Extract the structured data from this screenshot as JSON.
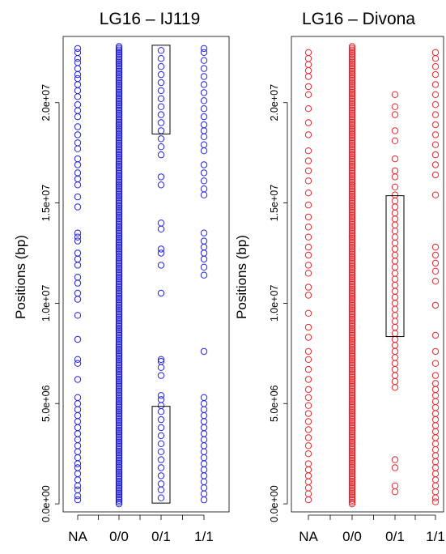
{
  "colors": {
    "panel_1": "#1f1fe6",
    "panel_2": "#e8262a"
  },
  "chart_data": [
    {
      "type": "scatter",
      "title": "LG16 – IJ119",
      "ylabel": "Positions (bp)",
      "categories": [
        "NA",
        "0/0",
        "0/1",
        "1/1"
      ],
      "y_ticks": [
        0,
        5000000,
        10000000,
        15000000,
        20000000
      ],
      "y_tick_labels": [
        "0.0e+00",
        "5.0e+06",
        "1.0e+07",
        "1.5e+07",
        "2.0e+07"
      ],
      "ylim": [
        -400000,
        23300000
      ],
      "color": "#1f1fe6",
      "marker": "open-circle",
      "series": [
        {
          "category": "NA",
          "y": [
            200000,
            400000,
            700000,
            900000,
            1200000,
            1500000,
            1800000,
            2000000,
            2300000,
            2600000,
            2900000,
            3200000,
            3500000,
            3800000,
            4100000,
            4400000,
            4700000,
            5000000,
            5300000,
            6200000,
            7000000,
            7200000,
            8200000,
            9400000,
            10200000,
            10500000,
            11000000,
            11300000,
            11900000,
            12200000,
            12500000,
            13100000,
            13300000,
            13500000,
            14800000,
            15300000,
            15900000,
            16200000,
            16500000,
            16900000,
            17200000,
            17700000,
            18000000,
            18400000,
            18800000,
            19300000,
            19600000,
            19900000,
            20300000,
            20600000,
            20900000,
            21200000,
            21400000,
            21700000,
            22000000,
            22200000,
            22500000,
            22700000
          ]
        },
        {
          "category": "0/0",
          "dense_range": [
            0,
            22800000
          ]
        },
        {
          "category": "0/1",
          "y": [
            300000,
            700000,
            1000000,
            1400000,
            1800000,
            2200000,
            2600000,
            3000000,
            3400000,
            3800000,
            4200000,
            4600000,
            4900000,
            5200000,
            5400000,
            6400000,
            6800000,
            7100000,
            7200000,
            10500000,
            11900000,
            12500000,
            12700000,
            13700000,
            14000000,
            15900000,
            16300000,
            17400000,
            17800000,
            18200000,
            18600000,
            19000000,
            19400000,
            19800000,
            20200000,
            20600000,
            21000000,
            21400000,
            21800000,
            22200000,
            22600000
          ]
        },
        {
          "category": "1/1",
          "y": [
            200000,
            500000,
            800000,
            1100000,
            1400000,
            1700000,
            2000000,
            2300000,
            2600000,
            2900000,
            3200000,
            3500000,
            3800000,
            4100000,
            4400000,
            4700000,
            5000000,
            5300000,
            7600000,
            11400000,
            11800000,
            12200000,
            12500000,
            12800000,
            13100000,
            13500000,
            15400000,
            15700000,
            16100000,
            16500000,
            16900000,
            17600000,
            17900000,
            18300000,
            18600000,
            18900000,
            19300000,
            19700000,
            20100000,
            20500000,
            20900000,
            21300000,
            21700000,
            22100000,
            22500000,
            22700000
          ]
        }
      ],
      "highlight_boxes": [
        {
          "category": "0/1",
          "y_range": [
            200000,
            4700000
          ]
        },
        {
          "category": "0/1",
          "y_range": [
            18600000,
            22700000
          ]
        }
      ]
    },
    {
      "type": "scatter",
      "title": "LG16 – Divona",
      "ylabel": "Positions (bp)",
      "categories": [
        "NA",
        "0/0",
        "0/1",
        "1/1"
      ],
      "y_ticks": [
        0,
        5000000,
        10000000,
        15000000,
        20000000
      ],
      "y_tick_labels": [
        "0.0e+00",
        "5.0e+06",
        "1.0e+07",
        "1.5e+07",
        "2.0e+07"
      ],
      "ylim": [
        -400000,
        23300000
      ],
      "color": "#e8262a",
      "marker": "open-circle",
      "series": [
        {
          "category": "NA",
          "y": [
            200000,
            500000,
            800000,
            1100000,
            1400000,
            1700000,
            2000000,
            2500000,
            2900000,
            3300000,
            3700000,
            4100000,
            4500000,
            4900000,
            5300000,
            5700000,
            6200000,
            6700000,
            7200000,
            7600000,
            8300000,
            8800000,
            9500000,
            10400000,
            10800000,
            11500000,
            11900000,
            12400000,
            12800000,
            13300000,
            13800000,
            14300000,
            14900000,
            15500000,
            16100000,
            16600000,
            17100000,
            17600000,
            18400000,
            19000000,
            19700000,
            20400000,
            20800000,
            21300000,
            21600000,
            21900000,
            22200000,
            22500000
          ]
        },
        {
          "category": "0/0",
          "dense_range": [
            0,
            22800000
          ]
        },
        {
          "category": "0/1",
          "y": [
            600000,
            900000,
            1800000,
            2200000,
            5800000,
            6100000,
            6400000,
            6700000,
            7000000,
            7300000,
            7600000,
            7900000,
            8200000,
            8500000,
            8800000,
            9100000,
            9400000,
            9700000,
            10000000,
            10300000,
            10600000,
            10900000,
            11200000,
            11500000,
            11800000,
            12100000,
            12400000,
            12700000,
            13000000,
            13300000,
            13600000,
            13900000,
            14200000,
            14500000,
            14800000,
            15100000,
            15400000,
            15800000,
            16300000,
            16600000,
            17200000,
            18100000,
            18600000,
            19400000,
            19800000,
            20400000
          ]
        },
        {
          "category": "1/1",
          "y": [
            100000,
            300000,
            600000,
            900000,
            1200000,
            1500000,
            1800000,
            2100000,
            2400000,
            2700000,
            3000000,
            3300000,
            3600000,
            3900000,
            4200000,
            4500000,
            4800000,
            5100000,
            5400000,
            5700000,
            6000000,
            6400000,
            7000000,
            7600000,
            8400000,
            9900000,
            11100000,
            11600000,
            12000000,
            12400000,
            12800000,
            15400000,
            16400000,
            16900000,
            17400000,
            17900000,
            18400000,
            18900000,
            19400000,
            19900000,
            20400000,
            20900000,
            21400000,
            21800000,
            22200000,
            22500000
          ]
        }
      ],
      "highlight_boxes": [
        {
          "category": "0/1",
          "y_range": [
            8500000,
            15200000
          ]
        }
      ]
    }
  ]
}
